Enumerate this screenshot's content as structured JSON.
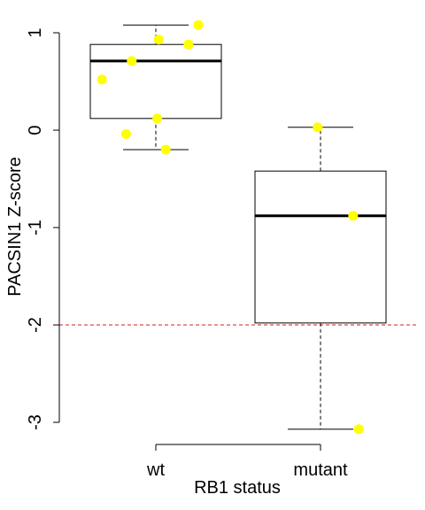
{
  "chart_data": {
    "type": "boxplot",
    "xlabel": "RB1 status",
    "ylabel": "PACSIN1 Z-score",
    "categories": [
      "wt",
      "mutant"
    ],
    "ylim": [
      -3.2,
      1.1
    ],
    "yticks": [
      -3,
      -2,
      -1,
      0,
      1
    ],
    "ytick_labels": [
      "-3",
      "-2",
      "-1",
      "0",
      "1"
    ],
    "boxes": [
      {
        "category": "wt",
        "whisker_low": -0.2,
        "q1": 0.12,
        "median": 0.71,
        "q3": 0.88,
        "whisker_high": 1.08
      },
      {
        "category": "mutant",
        "whisker_low": -3.07,
        "q1": -1.98,
        "median": -0.88,
        "q3": -0.42,
        "whisker_high": 0.03
      }
    ],
    "points": [
      {
        "category": "wt",
        "jitter": 0.3,
        "y": 1.08
      },
      {
        "category": "wt",
        "jitter": 0.02,
        "y": 0.93
      },
      {
        "category": "wt",
        "jitter": 0.23,
        "y": 0.88
      },
      {
        "category": "wt",
        "jitter": -0.17,
        "y": 0.71
      },
      {
        "category": "wt",
        "jitter": -0.38,
        "y": 0.52
      },
      {
        "category": "wt",
        "jitter": 0.01,
        "y": 0.12
      },
      {
        "category": "wt",
        "jitter": -0.21,
        "y": -0.04
      },
      {
        "category": "wt",
        "jitter": 0.07,
        "y": -0.2
      },
      {
        "category": "mutant",
        "jitter": -0.02,
        "y": 0.03
      },
      {
        "category": "mutant",
        "jitter": 0.23,
        "y": -0.88
      },
      {
        "category": "mutant",
        "jitter": 0.27,
        "y": -3.07
      }
    ],
    "reference_line": {
      "y": -2,
      "color": "#cc2222"
    },
    "point_color": "#ffff00",
    "grid": false,
    "legend": "none"
  }
}
